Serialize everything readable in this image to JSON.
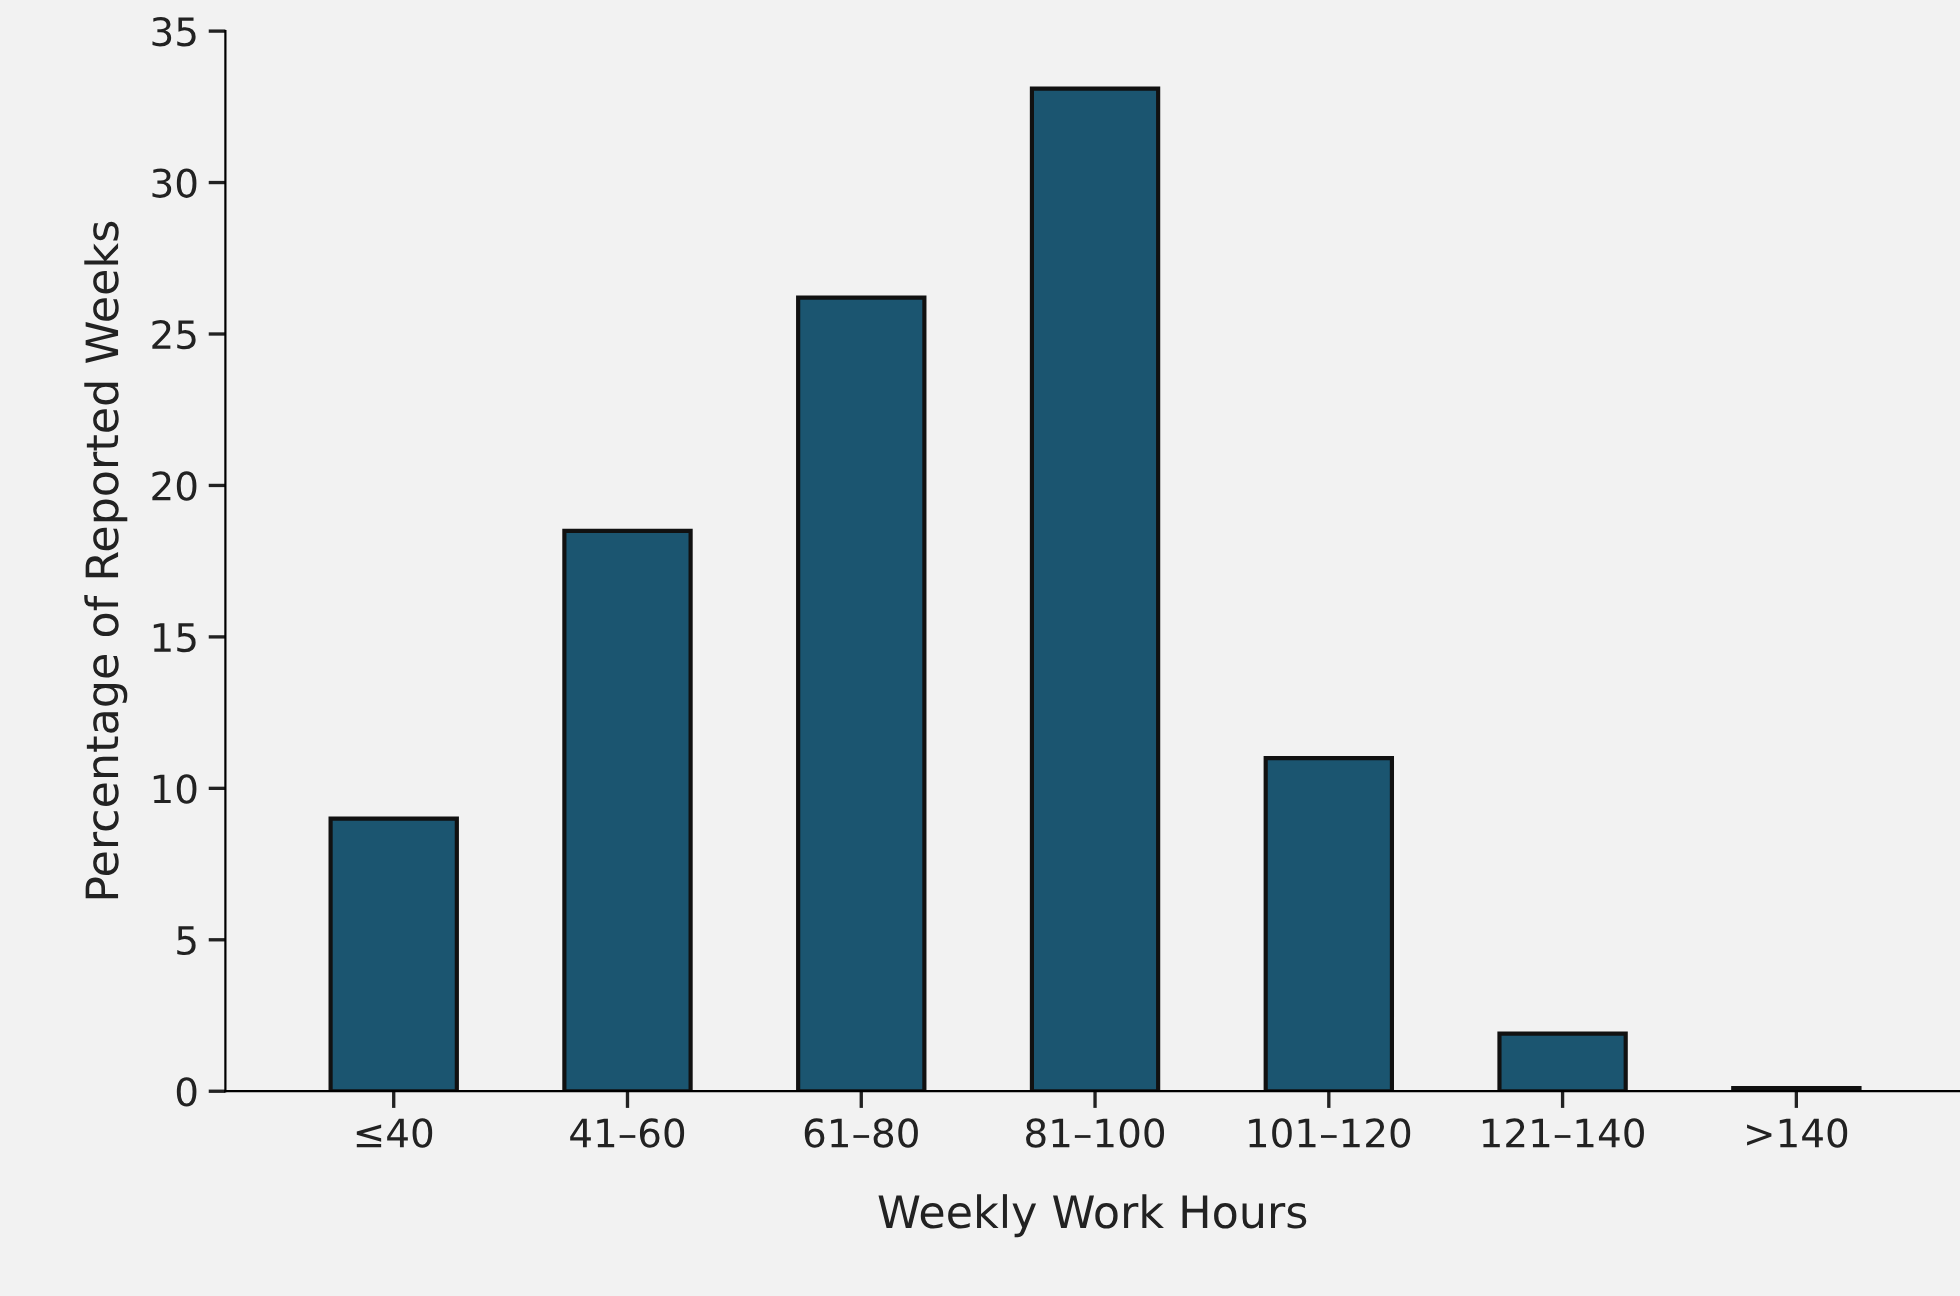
{
  "chart_data": {
    "type": "bar",
    "xlabel": "Weekly Work Hours",
    "ylabel": "Percentage of Reported Weeks",
    "categories": [
      "≤40",
      "41–60",
      "61–80",
      "81–100",
      "101–120",
      "121–140",
      ">140"
    ],
    "values": [
      9.0,
      18.5,
      26.2,
      33.1,
      11.0,
      1.9,
      0.1
    ],
    "color": "#1b5570",
    "ylim": [
      0,
      35
    ],
    "yticks": [
      0,
      5,
      10,
      15,
      20,
      25,
      30,
      35
    ],
    "grid": false
  }
}
